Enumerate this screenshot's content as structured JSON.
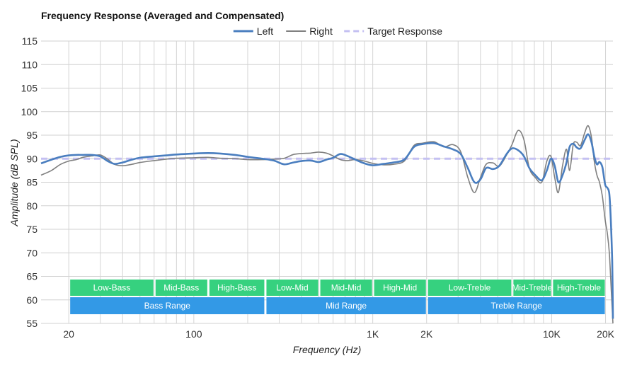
{
  "chart_data": {
    "type": "line",
    "title": "Frequency Response (Averaged and Compensated)",
    "xlabel": "Frequency (Hz)",
    "ylabel": "Amplitude (dB SPL)",
    "x_scale": "log",
    "xlim": [
      14,
      22000
    ],
    "ylim": [
      55,
      115
    ],
    "y_ticks": [
      55,
      60,
      65,
      70,
      75,
      80,
      85,
      90,
      95,
      100,
      105,
      110,
      115
    ],
    "x_ticks": [
      {
        "value": 20,
        "label": "20"
      },
      {
        "value": 100,
        "label": "100"
      },
      {
        "value": 1000,
        "label": "1K"
      },
      {
        "value": 2000,
        "label": "2K"
      },
      {
        "value": 10000,
        "label": "10K"
      },
      {
        "value": 20000,
        "label": "20K"
      }
    ],
    "x_gridlines": [
      20,
      30,
      40,
      50,
      60,
      70,
      80,
      90,
      100,
      200,
      300,
      400,
      500,
      600,
      700,
      800,
      900,
      1000,
      2000,
      3000,
      4000,
      5000,
      6000,
      7000,
      8000,
      9000,
      10000,
      20000
    ],
    "grid": true,
    "legend": {
      "position": "top-center"
    },
    "series": [
      {
        "name": "Left",
        "color": "#4a7ebf",
        "style": "solid",
        "points": [
          [
            14,
            89
          ],
          [
            16,
            89.8
          ],
          [
            18,
            90.4
          ],
          [
            20,
            90.7
          ],
          [
            22,
            90.8
          ],
          [
            24,
            90.8
          ],
          [
            27,
            90.8
          ],
          [
            30,
            90.5
          ],
          [
            33,
            89.5
          ],
          [
            36,
            88.9
          ],
          [
            40,
            89.2
          ],
          [
            45,
            89.8
          ],
          [
            50,
            90.2
          ],
          [
            60,
            90.5
          ],
          [
            70,
            90.7
          ],
          [
            80,
            90.9
          ],
          [
            100,
            91.1
          ],
          [
            120,
            91.2
          ],
          [
            140,
            91.1
          ],
          [
            170,
            90.8
          ],
          [
            200,
            90.4
          ],
          [
            240,
            90.0
          ],
          [
            280,
            89.6
          ],
          [
            320,
            88.8
          ],
          [
            360,
            89.2
          ],
          [
            400,
            89.5
          ],
          [
            450,
            89.6
          ],
          [
            500,
            89.3
          ],
          [
            550,
            89.8
          ],
          [
            600,
            90.2
          ],
          [
            660,
            91.0
          ],
          [
            720,
            90.6
          ],
          [
            800,
            89.8
          ],
          [
            900,
            89.0
          ],
          [
            1000,
            88.6
          ],
          [
            1150,
            88.9
          ],
          [
            1300,
            89.2
          ],
          [
            1500,
            89.8
          ],
          [
            1700,
            92.5
          ],
          [
            1900,
            93.1
          ],
          [
            2200,
            93.3
          ],
          [
            2500,
            92.6
          ],
          [
            2800,
            92.0
          ],
          [
            3100,
            91.0
          ],
          [
            3400,
            88.0
          ],
          [
            3700,
            85.0
          ],
          [
            4000,
            85.6
          ],
          [
            4300,
            88.0
          ],
          [
            4700,
            87.8
          ],
          [
            5100,
            88.5
          ],
          [
            5600,
            91.0
          ],
          [
            6000,
            92.2
          ],
          [
            6500,
            91.8
          ],
          [
            7000,
            90.5
          ],
          [
            7500,
            88.0
          ],
          [
            8100,
            86.5
          ],
          [
            8800,
            85.4
          ],
          [
            9400,
            87.5
          ],
          [
            9900,
            90.0
          ],
          [
            10400,
            88.5
          ],
          [
            10900,
            85.0
          ],
          [
            11500,
            86.5
          ],
          [
            12100,
            89.2
          ],
          [
            12600,
            92.5
          ],
          [
            13200,
            93.2
          ],
          [
            13800,
            92.4
          ],
          [
            14500,
            92.2
          ],
          [
            15300,
            94.0
          ],
          [
            16000,
            95.2
          ],
          [
            16700,
            93.5
          ],
          [
            17300,
            90.5
          ],
          [
            17900,
            88.8
          ],
          [
            18500,
            89.3
          ],
          [
            19200,
            88.2
          ],
          [
            19900,
            84.5
          ],
          [
            20500,
            83.8
          ],
          [
            21000,
            82.5
          ],
          [
            21400,
            77
          ],
          [
            21800,
            68
          ],
          [
            22000,
            56
          ]
        ]
      },
      {
        "name": "Right",
        "color": "#808080",
        "style": "solid",
        "points": [
          [
            14,
            86.5
          ],
          [
            16,
            87.5
          ],
          [
            18,
            88.8
          ],
          [
            20,
            89.5
          ],
          [
            22,
            89.8
          ],
          [
            24,
            90.3
          ],
          [
            27,
            90.6
          ],
          [
            30,
            90.8
          ],
          [
            33,
            89.9
          ],
          [
            36,
            88.8
          ],
          [
            40,
            88.5
          ],
          [
            45,
            88.8
          ],
          [
            50,
            89.2
          ],
          [
            60,
            89.6
          ],
          [
            70,
            89.9
          ],
          [
            80,
            90.1
          ],
          [
            100,
            90.2
          ],
          [
            120,
            90.3
          ],
          [
            140,
            90.1
          ],
          [
            170,
            90.0
          ],
          [
            200,
            89.8
          ],
          [
            240,
            89.8
          ],
          [
            280,
            89.9
          ],
          [
            320,
            90.1
          ],
          [
            360,
            90.9
          ],
          [
            400,
            91.1
          ],
          [
            450,
            91.2
          ],
          [
            500,
            91.4
          ],
          [
            550,
            91.2
          ],
          [
            600,
            90.6
          ],
          [
            660,
            89.8
          ],
          [
            720,
            89.6
          ],
          [
            800,
            89.8
          ],
          [
            900,
            89.5
          ],
          [
            1000,
            89.0
          ],
          [
            1150,
            88.7
          ],
          [
            1300,
            88.8
          ],
          [
            1500,
            89.5
          ],
          [
            1700,
            92.8
          ],
          [
            1900,
            93.3
          ],
          [
            2200,
            93.6
          ],
          [
            2500,
            92.5
          ],
          [
            2800,
            93.0
          ],
          [
            3100,
            91.5
          ],
          [
            3400,
            86.0
          ],
          [
            3700,
            82.8
          ],
          [
            4000,
            86.0
          ],
          [
            4300,
            88.8
          ],
          [
            4700,
            89.1
          ],
          [
            5100,
            88.4
          ],
          [
            5600,
            90.8
          ],
          [
            6000,
            93.0
          ],
          [
            6500,
            96.0
          ],
          [
            7000,
            94.0
          ],
          [
            7500,
            88.0
          ],
          [
            8100,
            86.0
          ],
          [
            8800,
            85.0
          ],
          [
            9400,
            89.5
          ],
          [
            9900,
            90.5
          ],
          [
            10400,
            86.0
          ],
          [
            10900,
            82.8
          ],
          [
            11500,
            88.5
          ],
          [
            12100,
            92.0
          ],
          [
            12600,
            87.5
          ],
          [
            13200,
            93.0
          ],
          [
            13800,
            93.5
          ],
          [
            14500,
            92.8
          ],
          [
            15300,
            95.5
          ],
          [
            16000,
            97.0
          ],
          [
            16700,
            94.5
          ],
          [
            17300,
            89.5
          ],
          [
            17900,
            86.5
          ],
          [
            18500,
            85.0
          ],
          [
            19200,
            82.0
          ],
          [
            19900,
            77.0
          ],
          [
            20500,
            74.0
          ],
          [
            21000,
            70.0
          ],
          [
            21400,
            64
          ],
          [
            21800,
            58
          ],
          [
            22000,
            55
          ]
        ]
      },
      {
        "name": "Target Response",
        "color": "#c4c0f2",
        "style": "dashed",
        "points": [
          [
            14,
            90
          ],
          [
            22000,
            90
          ]
        ]
      }
    ],
    "bands_row1": [
      {
        "label": "Low-Bass",
        "from": 20,
        "to": 60,
        "color": "#36d17f"
      },
      {
        "label": "Mid-Bass",
        "from": 60,
        "to": 120,
        "color": "#36d17f"
      },
      {
        "label": "High-Bass",
        "from": 120,
        "to": 250,
        "color": "#36d17f"
      },
      {
        "label": "Low-Mid",
        "from": 250,
        "to": 500,
        "color": "#36d17f"
      },
      {
        "label": "Mid-Mid",
        "from": 500,
        "to": 1000,
        "color": "#36d17f"
      },
      {
        "label": "High-Mid",
        "from": 1000,
        "to": 2000,
        "color": "#36d17f"
      },
      {
        "label": "Low-Treble",
        "from": 2000,
        "to": 6000,
        "color": "#36d17f"
      },
      {
        "label": "Mid-Treble",
        "from": 6000,
        "to": 10000,
        "color": "#36d17f"
      },
      {
        "label": "High-Treble",
        "from": 10000,
        "to": 20000,
        "color": "#36d17f"
      }
    ],
    "bands_row2": [
      {
        "label": "Bass Range",
        "from": 20,
        "to": 250,
        "color": "#3399e6"
      },
      {
        "label": "Mid Range",
        "from": 250,
        "to": 2000,
        "color": "#3399e6"
      },
      {
        "label": "Treble Range",
        "from": 2000,
        "to": 20000,
        "color": "#3399e6"
      }
    ]
  }
}
